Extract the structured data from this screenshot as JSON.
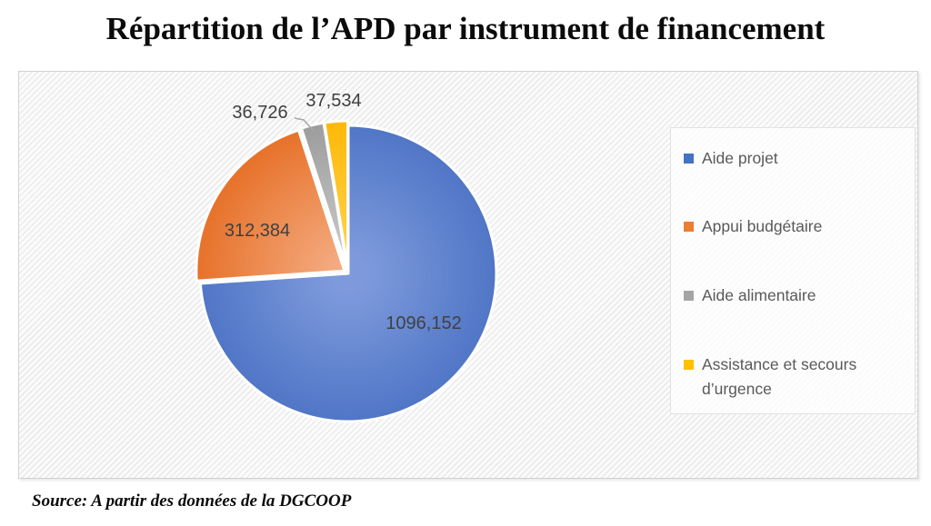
{
  "title": "Répartition de l’APD par instrument de financement",
  "source": {
    "text": "Source: A partir des données de la DGCOOP"
  },
  "chart_data": {
    "type": "pie",
    "title": "Répartition de l’APD par instrument de financement",
    "legend_position": "right",
    "start_angle_deg": 0,
    "direction": "clockwise",
    "slices": [
      {
        "name": "Aide projet",
        "value": 1096.152,
        "display": "1096,152",
        "legend_color": "#4472C4",
        "gradient": {
          "inner": "#7E9ADC",
          "outer": "#5076C6"
        }
      },
      {
        "name": "Appui budgétaire",
        "value": 312.384,
        "display": "312,384",
        "legend_color": "#ED7D31",
        "gradient": {
          "inner": "#F4A97E",
          "outer": "#E7732C"
        }
      },
      {
        "name": "Aide alimentaire",
        "value": 36.726,
        "display": "36,726",
        "legend_color": "#A5A5A5",
        "gradient": {
          "inner": "#C9C9C9",
          "outer": "#9E9E9E"
        }
      },
      {
        "name": "Assistance et secours d’urgence",
        "value": 37.534,
        "display": "37,534",
        "legend_color": "#FFC000",
        "gradient": {
          "inner": "#FFD34D",
          "outer": "#FEB90B"
        }
      }
    ]
  }
}
